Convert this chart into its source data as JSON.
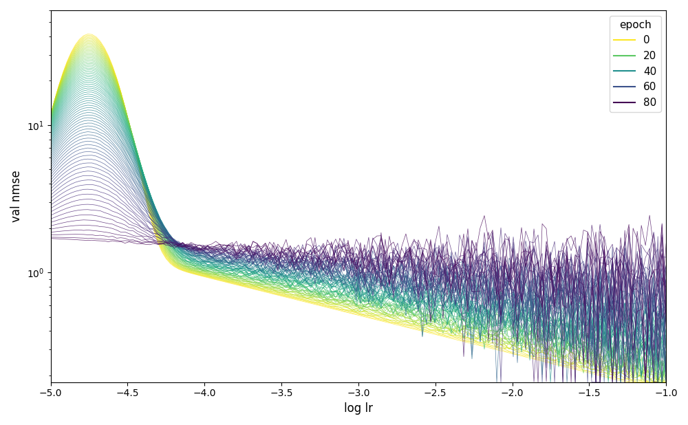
{
  "xlabel": "log lr",
  "ylabel": "val nmse",
  "xlim": [
    -5.0,
    -1.0
  ],
  "n_epochs": 81,
  "n_lr_steps": 150,
  "lr_min": -5.0,
  "lr_max": -1.0,
  "seed": 42,
  "colormap": "viridis_r",
  "legend_epochs": [
    0,
    20,
    40,
    60,
    80
  ],
  "legend_title": "epoch",
  "linewidth": 0.5,
  "alpha": 0.8
}
